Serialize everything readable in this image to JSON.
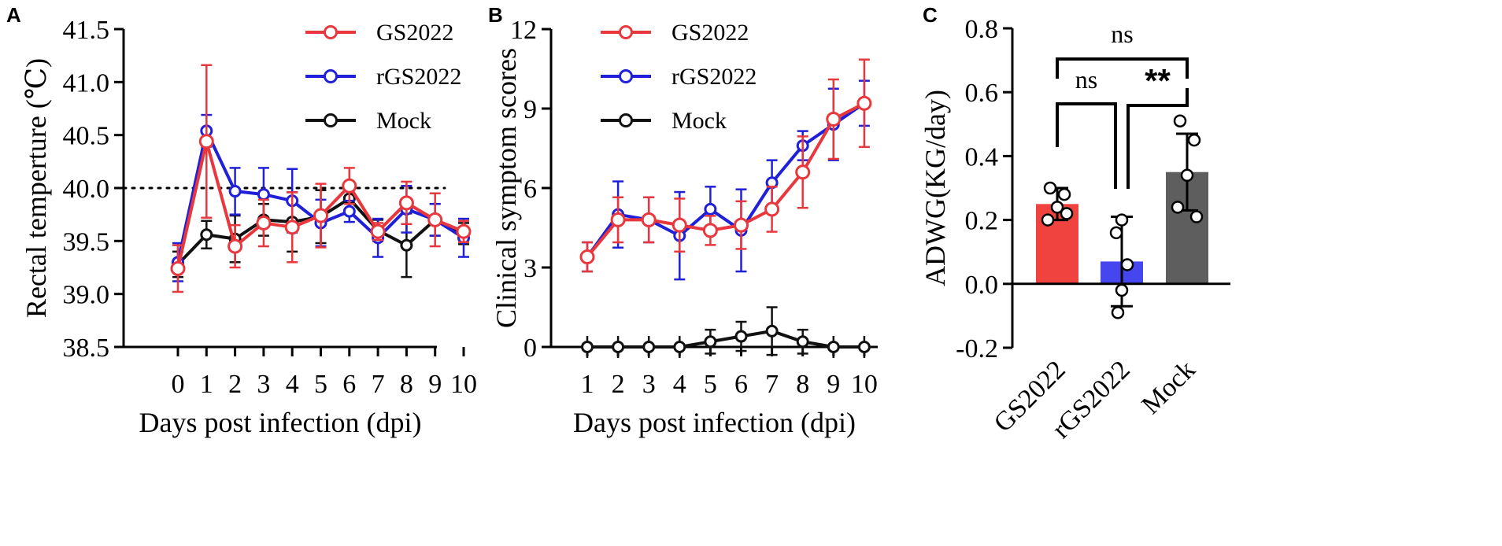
{
  "chart_data": [
    {
      "panel": "A",
      "type": "line",
      "ylabel": "Rectal temperture (℃)",
      "xlabel": "Days post infection (dpi)",
      "ylim": [
        38.5,
        41.5
      ],
      "yticks": [
        "38.5",
        "39.0",
        "39.5",
        "40.0",
        "40.5",
        "41.0",
        "41.5"
      ],
      "categories": [
        "0",
        "1",
        "2",
        "3",
        "4",
        "5",
        "6",
        "7",
        "8",
        "9",
        "10"
      ],
      "reference_line": 40.0,
      "series": [
        {
          "name": "GS2022",
          "color": "#e8383d",
          "values": [
            39.24,
            40.44,
            39.45,
            39.67,
            39.63,
            39.74,
            40.02,
            39.59,
            39.86,
            39.7,
            39.59
          ],
          "errors": [
            0.22,
            0.72,
            0.2,
            0.22,
            0.33,
            0.3,
            0.17,
            0.08,
            0.2,
            0.25,
            0.1
          ]
        },
        {
          "name": "rGS2022",
          "color": "#2020d8",
          "values": [
            39.3,
            40.54,
            39.97,
            39.94,
            39.88,
            39.67,
            39.78,
            39.53,
            39.8,
            39.7,
            39.53
          ],
          "errors": [
            0.18,
            0.15,
            0.22,
            0.25,
            0.3,
            0.22,
            0.1,
            0.18,
            0.22,
            0.15,
            0.18
          ]
        },
        {
          "name": "Mock",
          "color": "#111111",
          "values": [
            39.28,
            39.56,
            39.52,
            39.7,
            39.68,
            39.73,
            39.9,
            39.6,
            39.46,
            39.7,
            39.57
          ],
          "errors": [
            0.12,
            0.13,
            0.22,
            0.15,
            0.28,
            0.25,
            0.1,
            0.1,
            0.3,
            0.15,
            0.1
          ]
        }
      ]
    },
    {
      "panel": "B",
      "type": "line",
      "ylabel": "Clinical symptom scores",
      "xlabel": "Days post infection (dpi)",
      "ylim": [
        0,
        12
      ],
      "yticks": [
        "0",
        "3",
        "6",
        "9",
        "12"
      ],
      "categories": [
        "1",
        "2",
        "3",
        "4",
        "5",
        "6",
        "7",
        "8",
        "9",
        "10"
      ],
      "series": [
        {
          "name": "GS2022",
          "color": "#e8383d",
          "values": [
            3.4,
            4.8,
            4.8,
            4.6,
            4.4,
            4.6,
            5.2,
            6.6,
            8.6,
            9.2
          ],
          "errors": [
            0.55,
            0.85,
            0.85,
            1.0,
            0.55,
            0.9,
            0.85,
            1.35,
            1.5,
            1.65
          ]
        },
        {
          "name": "rGS2022",
          "color": "#2020d8",
          "values": [
            3.4,
            5.0,
            4.8,
            4.2,
            5.2,
            4.4,
            6.2,
            7.6,
            8.4,
            9.2
          ],
          "errors": [
            0.55,
            1.25,
            0.85,
            1.65,
            0.85,
            1.55,
            0.85,
            0.55,
            1.35,
            0.85
          ]
        },
        {
          "name": "Mock",
          "color": "#111111",
          "values": [
            0,
            0,
            0,
            0,
            0.2,
            0.4,
            0.6,
            0.2,
            0,
            0
          ],
          "errors": [
            0,
            0,
            0,
            0,
            0.45,
            0.55,
            0.9,
            0.45,
            0,
            0
          ]
        }
      ]
    },
    {
      "panel": "C",
      "type": "bar",
      "ylabel": "ADWG(KG/day)",
      "ylim": [
        -0.2,
        0.8
      ],
      "yticks": [
        "-0.2",
        "0.0",
        "0.2",
        "0.4",
        "0.6",
        "0.8"
      ],
      "categories": [
        "GS2022",
        "rGS2022",
        "Mock"
      ],
      "colors": [
        "#f0433f",
        "#4646ee",
        "#5e5e5e"
      ],
      "values": [
        0.25,
        0.07,
        0.35
      ],
      "errors": [
        0.05,
        0.14,
        0.12
      ],
      "points": [
        [
          0.3,
          0.28,
          0.24,
          0.2,
          0.22
        ],
        [
          0.2,
          0.16,
          0.06,
          -0.02,
          -0.09
        ],
        [
          0.51,
          0.45,
          0.34,
          0.24,
          0.21
        ]
      ],
      "significance": [
        {
          "label": "ns",
          "pair": [
            "GS2022",
            "rGS2022"
          ]
        },
        {
          "label": "**",
          "pair": [
            "rGS2022",
            "Mock"
          ]
        },
        {
          "label": "ns",
          "pair": [
            "GS2022",
            "Mock"
          ]
        }
      ]
    }
  ]
}
